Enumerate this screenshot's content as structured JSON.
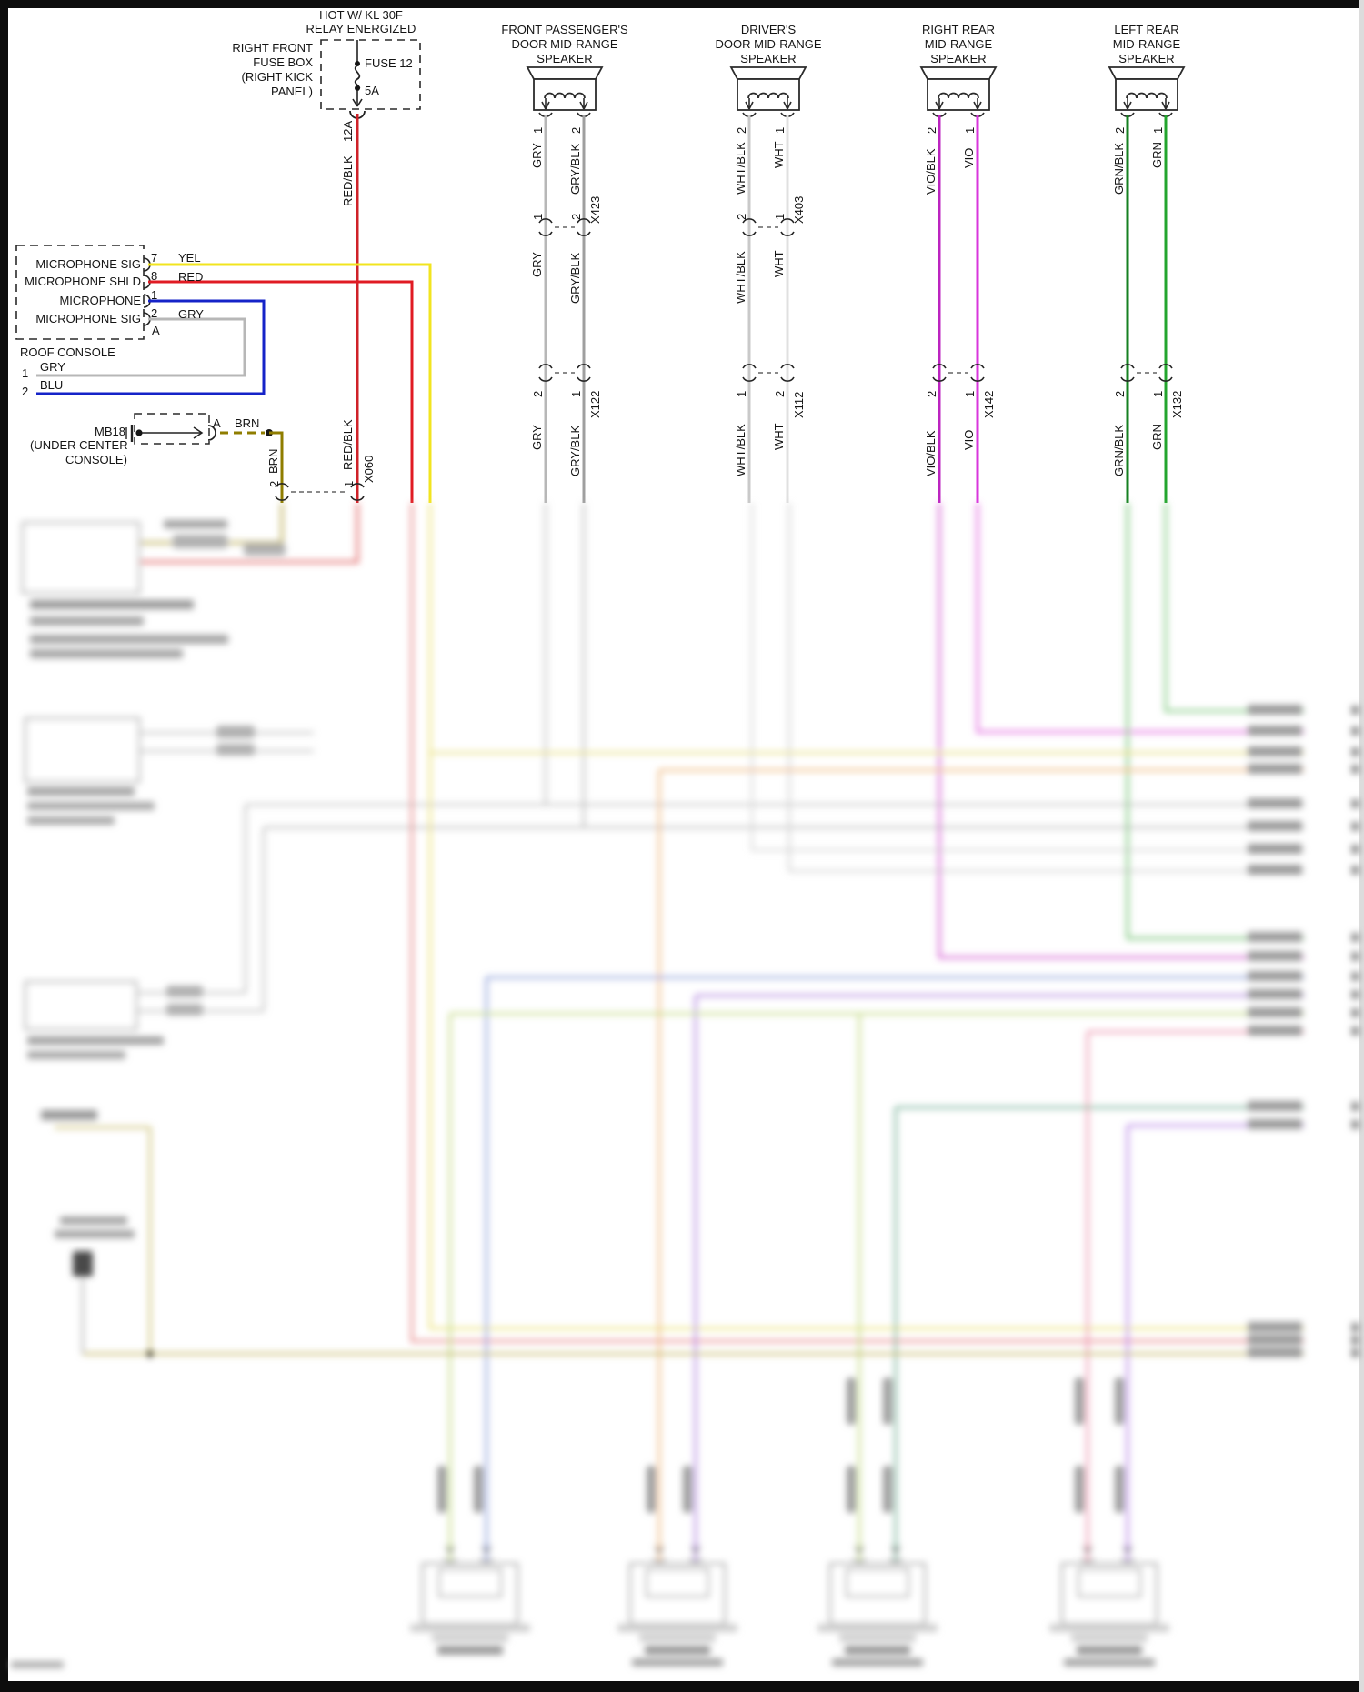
{
  "diagram": {
    "header": {
      "line1": "HOT W/ KL 30F",
      "line2": "RELAY ENERGIZED"
    }
  },
  "fuse_box": {
    "location_lines": [
      "RIGHT FRONT",
      "FUSE BOX",
      "(RIGHT KICK",
      "PANEL)"
    ],
    "fuse_name": "FUSE 12",
    "fuse_rating": "5A",
    "pin_label": "12A",
    "wire_label": "RED/BLK"
  },
  "microphone_connector": {
    "rows": [
      {
        "label": "MICROPHONE SIG",
        "pin": "7",
        "wire": "YEL"
      },
      {
        "label": "MICROPHONE SHLD",
        "pin": "8",
        "wire": "RED"
      },
      {
        "label": "MICROPHONE",
        "pin": "1",
        "wire": ""
      },
      {
        "label": "MICROPHONE SIG",
        "pin": "2",
        "wire": "GRY"
      }
    ],
    "pin_a": "A"
  },
  "roof_console": {
    "label": "ROOF CONSOLE",
    "rows": [
      {
        "pin": "1",
        "wire": "GRY"
      },
      {
        "pin": "2",
        "wire": "BLU"
      }
    ]
  },
  "mb18": {
    "name": "MB18",
    "location_lines": [
      "(UNDER CENTER",
      "CONSOLE)"
    ],
    "pin": "A",
    "wire": "BRN"
  },
  "x060": {
    "name": "X060",
    "left_pin": "2",
    "left_wire": "BRN",
    "right_pin": "1",
    "right_wire": "RED/BLK"
  },
  "speakers": [
    {
      "title": [
        "FRONT PASSENGER'S",
        "DOOR MID-RANGE",
        "SPEAKER"
      ],
      "pin_left": "1",
      "pin_right": "2",
      "wire_left": "GRY",
      "wire_right": "GRY/BLK",
      "connectors": [
        {
          "name": "X423",
          "pin_left": "1",
          "pin_right": "2"
        },
        {
          "name": "X122",
          "pin_left": "2",
          "pin_right": "1"
        }
      ]
    },
    {
      "title": [
        "DRIVER'S",
        "DOOR MID-RANGE",
        "SPEAKER"
      ],
      "pin_left": "2",
      "pin_right": "1",
      "wire_left": "WHT/BLK",
      "wire_right": "WHT",
      "connectors": [
        {
          "name": "X403",
          "pin_left": "2",
          "pin_right": "1"
        },
        {
          "name": "X112",
          "pin_left": "1",
          "pin_right": "2"
        }
      ]
    },
    {
      "title": [
        "RIGHT REAR",
        "MID-RANGE",
        "SPEAKER"
      ],
      "pin_left": "2",
      "pin_right": "1",
      "wire_left": "VIO/BLK",
      "wire_right": "VIO",
      "connectors": [
        {
          "name": "X142",
          "pin_left": "2",
          "pin_right": "1"
        }
      ]
    },
    {
      "title": [
        "LEFT REAR",
        "MID-RANGE",
        "SPEAKER"
      ],
      "pin_left": "2",
      "pin_right": "1",
      "wire_left": "GRN/BLK",
      "wire_right": "GRN",
      "connectors": [
        {
          "name": "X132",
          "pin_left": "2",
          "pin_right": "1"
        }
      ]
    }
  ],
  "colors": {
    "yel": "#f2e41f",
    "red": "#e01b23",
    "blu": "#1523c8",
    "gry": "#b7b7b7",
    "gry_blk": "#9f9f9f",
    "wht": "#e0e0e0",
    "wht_blk": "#c9c9c9",
    "vio": "#d836dc",
    "vio_blk": "#bc24c0",
    "grn": "#23a52e",
    "grn_blk": "#168021",
    "brn": "#8f7d00",
    "red_blk": "#cf2128"
  }
}
